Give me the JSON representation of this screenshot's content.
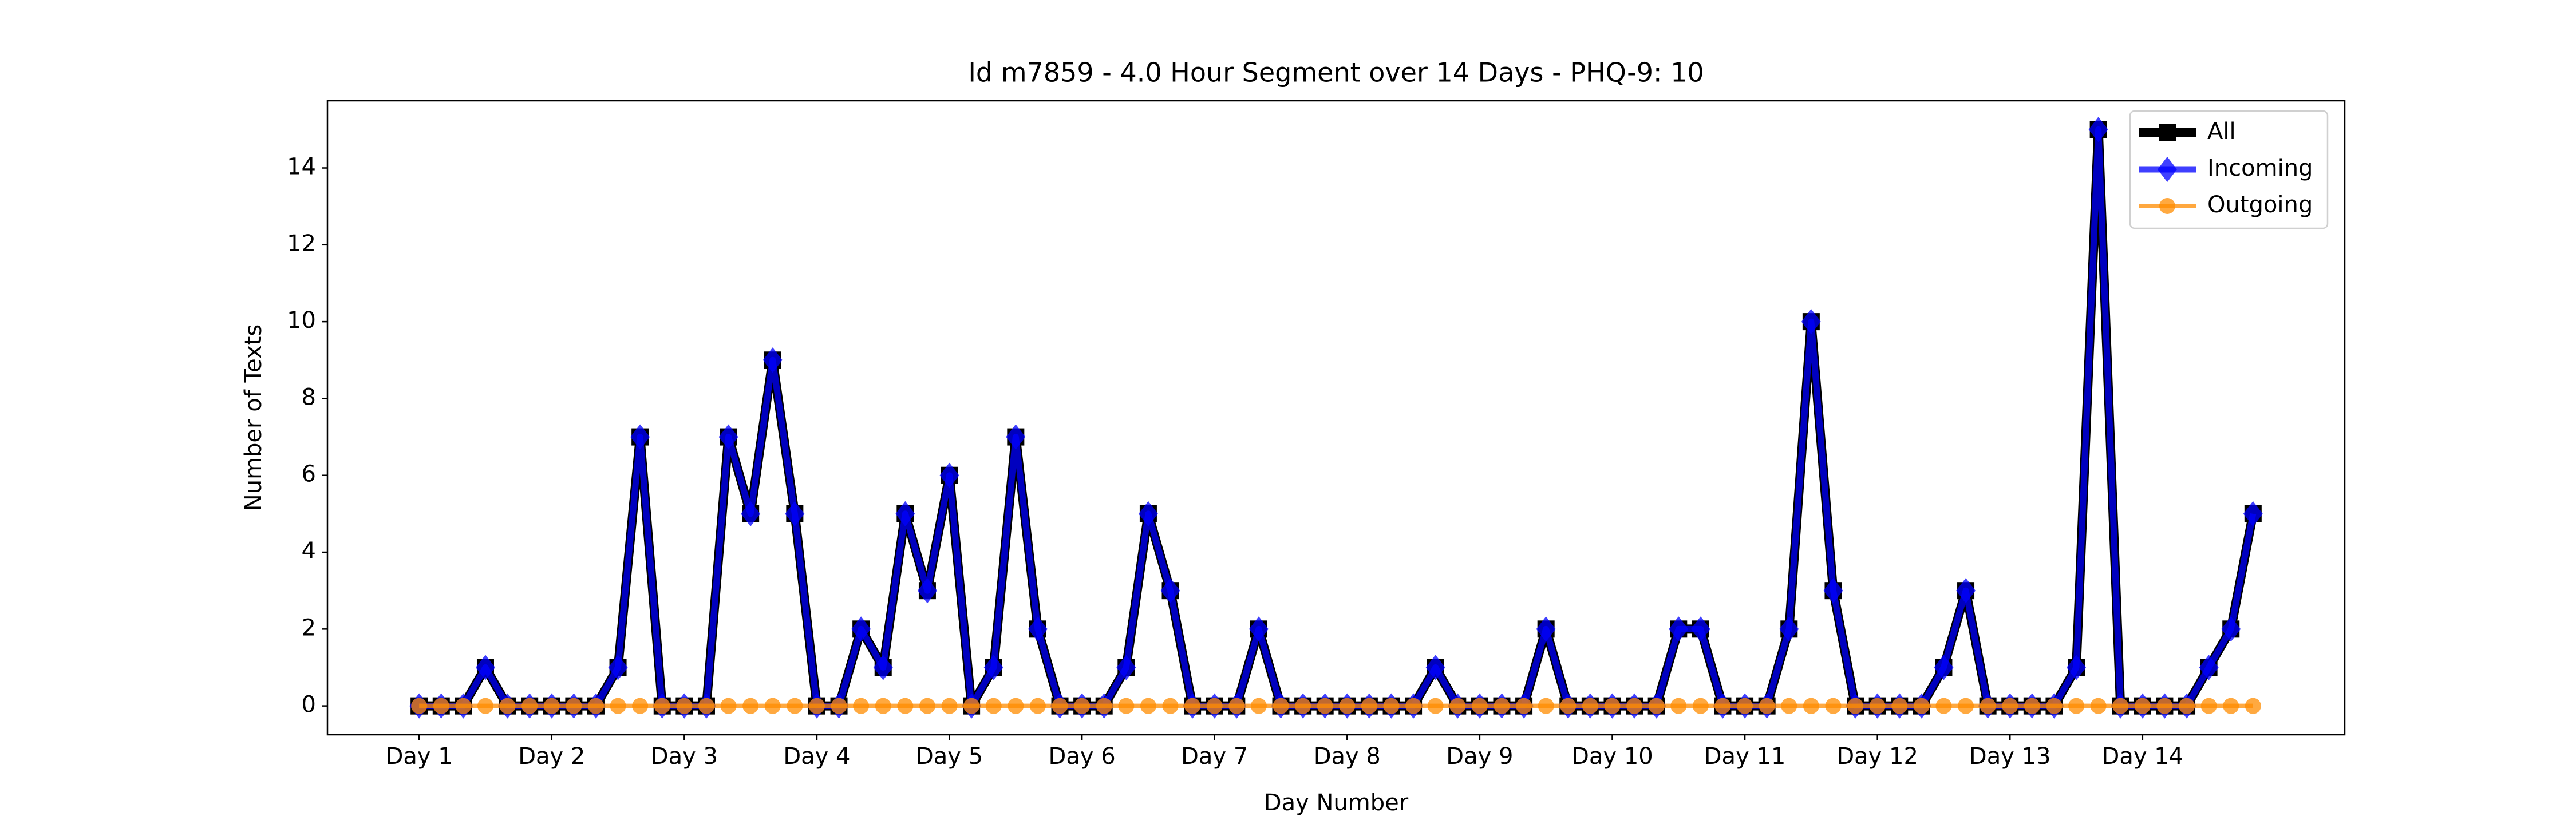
{
  "chart_data": {
    "type": "line",
    "title": "Id m7859 - 4.0 Hour Segment over 14 Days - PHQ-9: 10",
    "x_label": "Day Number",
    "y_label": "Number of Texts",
    "categories": [
      "Day 1",
      null,
      null,
      null,
      null,
      null,
      "Day 2",
      null,
      null,
      null,
      null,
      null,
      "Day 3",
      null,
      null,
      null,
      null,
      null,
      "Day 4",
      null,
      null,
      null,
      null,
      null,
      "Day 5",
      null,
      null,
      null,
      null,
      null,
      "Day 6",
      null,
      null,
      null,
      null,
      null,
      "Day 7",
      null,
      null,
      null,
      null,
      null,
      "Day 8",
      null,
      null,
      null,
      null,
      null,
      "Day 9",
      null,
      null,
      null,
      null,
      null,
      "Day 10",
      null,
      null,
      null,
      null,
      null,
      "Day 11",
      null,
      null,
      null,
      null,
      null,
      "Day 12",
      null,
      null,
      null,
      null,
      null,
      "Day 13",
      null,
      null,
      null,
      null,
      null,
      "Day 14",
      null,
      null,
      null,
      null,
      null
    ],
    "series": [
      {
        "name": "All",
        "color": "#000000",
        "marker": "square",
        "values": [
          0,
          0,
          0,
          1,
          0,
          0,
          0,
          0,
          0,
          1,
          7,
          0,
          0,
          0,
          7,
          5,
          9,
          5,
          0,
          0,
          2,
          1,
          5,
          3,
          6,
          0,
          1,
          7,
          2,
          0,
          0,
          0,
          1,
          5,
          3,
          0,
          0,
          0,
          2,
          0,
          0,
          0,
          0,
          0,
          0,
          0,
          1,
          0,
          0,
          0,
          0,
          2,
          0,
          0,
          0,
          0,
          0,
          2,
          2,
          0,
          0,
          0,
          2,
          10,
          3,
          0,
          0,
          0,
          0,
          1,
          3,
          0,
          0,
          0,
          0,
          1,
          15,
          0,
          0,
          0,
          0,
          1,
          2,
          5
        ]
      },
      {
        "name": "Incoming",
        "color": "#0000ff",
        "marker": "diamond",
        "values": [
          0,
          0,
          0,
          1,
          0,
          0,
          0,
          0,
          0,
          1,
          7,
          0,
          0,
          0,
          7,
          5,
          9,
          5,
          0,
          0,
          2,
          1,
          5,
          3,
          6,
          0,
          1,
          7,
          2,
          0,
          0,
          0,
          1,
          5,
          3,
          0,
          0,
          0,
          2,
          0,
          0,
          0,
          0,
          0,
          0,
          0,
          1,
          0,
          0,
          0,
          0,
          2,
          0,
          0,
          0,
          0,
          0,
          2,
          2,
          0,
          0,
          0,
          2,
          10,
          3,
          0,
          0,
          0,
          0,
          1,
          3,
          0,
          0,
          0,
          0,
          1,
          15,
          0,
          0,
          0,
          0,
          1,
          2,
          5
        ]
      },
      {
        "name": "Outgoing",
        "color": "#ff8c00",
        "marker": "circle",
        "values": [
          0,
          0,
          0,
          0,
          0,
          0,
          0,
          0,
          0,
          0,
          0,
          0,
          0,
          0,
          0,
          0,
          0,
          0,
          0,
          0,
          0,
          0,
          0,
          0,
          0,
          0,
          0,
          0,
          0,
          0,
          0,
          0,
          0,
          0,
          0,
          0,
          0,
          0,
          0,
          0,
          0,
          0,
          0,
          0,
          0,
          0,
          0,
          0,
          0,
          0,
          0,
          0,
          0,
          0,
          0,
          0,
          0,
          0,
          0,
          0,
          0,
          0,
          0,
          0,
          0,
          0,
          0,
          0,
          0,
          0,
          0,
          0,
          0,
          0,
          0,
          0,
          0,
          0,
          0,
          0,
          0,
          0,
          0,
          0
        ]
      }
    ],
    "xlim": [
      -4.15,
      87.15
    ],
    "ylim": [
      -0.75,
      15.75
    ],
    "yticks": [
      0,
      2,
      4,
      6,
      8,
      10,
      12,
      14
    ],
    "legend": "upper right"
  }
}
